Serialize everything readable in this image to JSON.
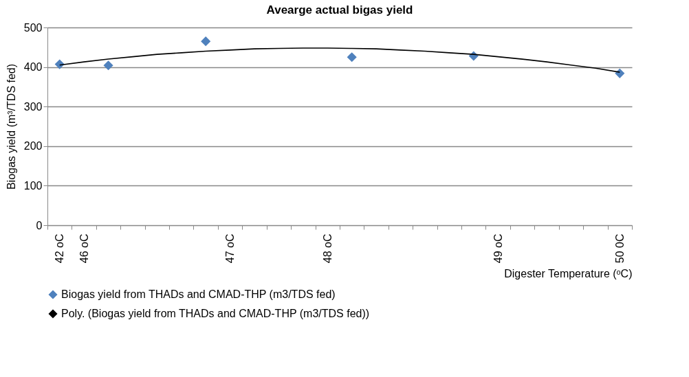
{
  "chart_data": {
    "type": "scatter",
    "title": "Avearge actual bigas yield",
    "xlabel": "Digester Temperature (ᵒC)",
    "ylabel": "Biogas  yield (m³/TDS fed)",
    "categories": [
      "42 oC",
      "46 oC",
      null,
      null,
      null,
      null,
      null,
      "47 oC",
      null,
      null,
      null,
      "48 oC",
      null,
      null,
      null,
      null,
      null,
      null,
      "49 oC",
      null,
      null,
      null,
      null,
      "50 0C"
    ],
    "series": [
      {
        "name": "Biogas yield from THADs and CMAD-THP (m3/TDS fed)",
        "color": "#4f81bd",
        "marker": "diamond",
        "values": [
          407,
          null,
          404,
          null,
          null,
          null,
          465,
          null,
          null,
          null,
          null,
          null,
          425,
          null,
          null,
          null,
          null,
          428,
          null,
          null,
          null,
          null,
          null,
          384
        ]
      },
      {
        "name": "Poly. (Biogas yield from THADs and CMAD-THP (m3/TDS fed))",
        "type": "line",
        "color": "#000000",
        "values": [
          405,
          413,
          420,
          426,
          432,
          436,
          440,
          443,
          446,
          447,
          448,
          448,
          447,
          446,
          443,
          440,
          436,
          432,
          426,
          420,
          413,
          405,
          397,
          387
        ]
      }
    ],
    "ylim": [
      0,
      500
    ],
    "yticks": [
      0,
      100,
      200,
      300,
      400,
      500
    ],
    "grid": "y",
    "legend": "bottom"
  }
}
